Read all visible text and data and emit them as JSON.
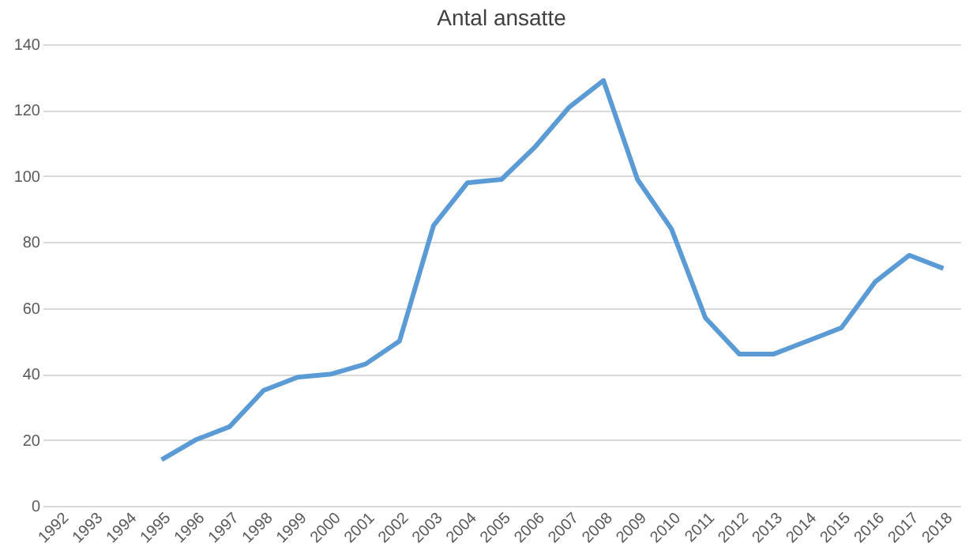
{
  "chart_data": {
    "type": "line",
    "title": "Antal ansatte",
    "categories": [
      "1992",
      "1993",
      "1994",
      "1995",
      "1996",
      "1997",
      "1998",
      "1999",
      "2000",
      "2001",
      "2002",
      "2003",
      "2004",
      "2005",
      "2006",
      "2007",
      "2008",
      "2009",
      "2010",
      "2011",
      "2012",
      "2013",
      "2014",
      "2015",
      "2016",
      "2017",
      "2018"
    ],
    "series": [
      {
        "color": "#5b9bd5",
        "values": [
          null,
          null,
          null,
          14,
          20,
          24,
          35,
          39,
          40,
          43,
          50,
          85,
          98,
          99,
          109,
          121,
          129,
          99,
          84,
          57,
          46,
          46,
          50,
          54,
          68,
          76,
          72
        ]
      }
    ],
    "ylim": [
      0,
      140
    ],
    "yticks": [
      0,
      20,
      40,
      60,
      80,
      100,
      120,
      140
    ],
    "grid": "y",
    "marker": "none",
    "line_style": "solid"
  }
}
